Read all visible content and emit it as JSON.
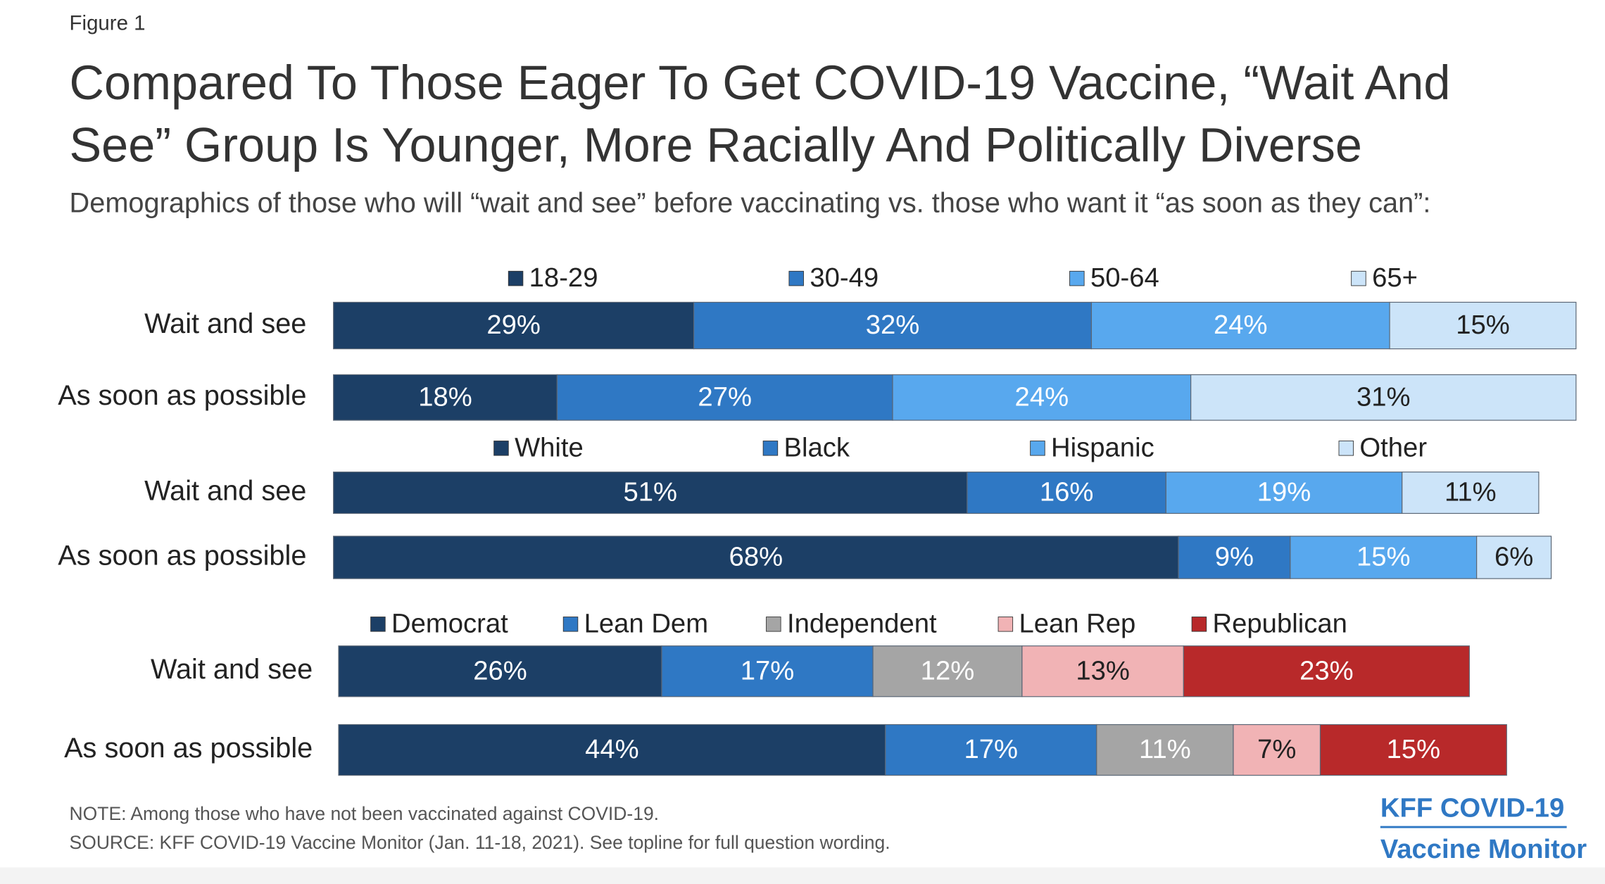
{
  "figure_label": "Figure 1",
  "title": "Compared To Those Eager To Get COVID-19 Vaccine, “Wait And See” Group Is Younger, More Racially And Politically Diverse",
  "subtitle": "Demographics of those who will “wait and see” before vaccinating vs. those who want it “as soon as they can”:",
  "note": "NOTE: Among those who have not been vaccinated against COVID-19.",
  "source": "SOURCE: KFF COVID-19 Vaccine Monitor (Jan. 11-18, 2021). See topline for full question wording.",
  "brand": {
    "name": "KFF COVID-19",
    "product": "Vaccine Monitor"
  },
  "chart_data": [
    {
      "type": "bar",
      "orientation": "horizontal",
      "stacked": true,
      "categories": [
        "Wait and see",
        "As soon as possible"
      ],
      "series": [
        {
          "name": "18-29",
          "color": "#1c3f66",
          "values": [
            29,
            18
          ],
          "value_labels": [
            "29%",
            "18%"
          ]
        },
        {
          "name": "30-49",
          "color": "#2f78c4",
          "values": [
            32,
            27
          ],
          "value_labels": [
            "32%",
            "27%"
          ]
        },
        {
          "name": "50-64",
          "color": "#58a8ee",
          "values": [
            24,
            24
          ],
          "value_labels": [
            "24%",
            "24%"
          ]
        },
        {
          "name": "65+",
          "color": "#cce4f9",
          "values": [
            15,
            31
          ],
          "value_labels": [
            "15%",
            "31%"
          ]
        }
      ]
    },
    {
      "type": "bar",
      "orientation": "horizontal",
      "stacked": true,
      "categories": [
        "Wait and see",
        "As soon as possible"
      ],
      "series": [
        {
          "name": "White",
          "color": "#1c3f66",
          "values": [
            51,
            68
          ],
          "value_labels": [
            "51%",
            "68%"
          ]
        },
        {
          "name": "Black",
          "color": "#2f78c4",
          "values": [
            16,
            9
          ],
          "value_labels": [
            "16%",
            "9%"
          ]
        },
        {
          "name": "Hispanic",
          "color": "#58a8ee",
          "values": [
            19,
            15
          ],
          "value_labels": [
            "19%",
            "15%"
          ]
        },
        {
          "name": "Other",
          "color": "#cce4f9",
          "values": [
            11,
            6
          ],
          "value_labels": [
            "11%",
            "6%"
          ]
        }
      ]
    },
    {
      "type": "bar",
      "orientation": "horizontal",
      "stacked": true,
      "categories": [
        "Wait and see",
        "As soon as possible"
      ],
      "series": [
        {
          "name": "Democrat",
          "color": "#1c3f66",
          "values": [
            26,
            44
          ],
          "value_labels": [
            "26%",
            "44%"
          ]
        },
        {
          "name": "Lean Dem",
          "color": "#2f78c4",
          "values": [
            17,
            17
          ],
          "value_labels": [
            "17%",
            "17%"
          ]
        },
        {
          "name": "Independent",
          "color": "#a5a5a5",
          "values": [
            12,
            11
          ],
          "value_labels": [
            "12%",
            "11%"
          ]
        },
        {
          "name": "Lean Rep",
          "color": "#f1b3b5",
          "values": [
            13,
            7
          ],
          "value_labels": [
            "13%",
            "7%"
          ]
        },
        {
          "name": "Republican",
          "color": "#b8292a",
          "values": [
            23,
            15
          ],
          "value_labels": [
            "23%",
            "15%"
          ]
        }
      ]
    }
  ]
}
